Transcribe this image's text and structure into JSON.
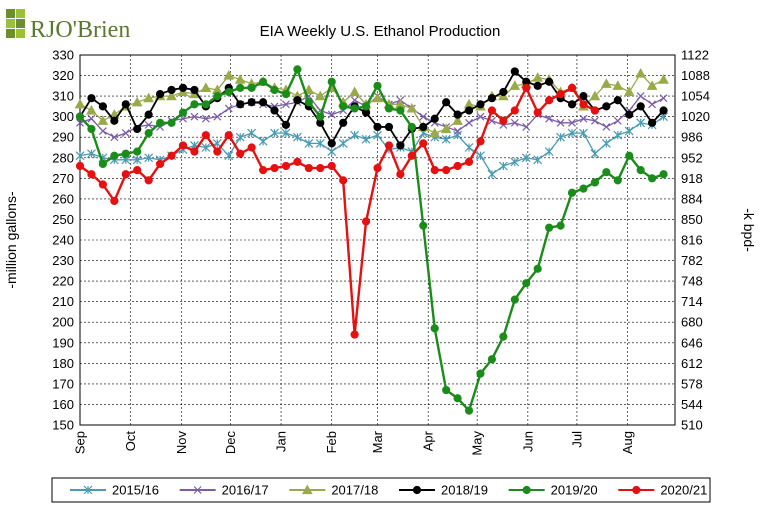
{
  "logo": {
    "brand": "RJO'Brien",
    "mark": "RJO",
    "suffix": "Brien"
  },
  "chart_data": {
    "type": "line",
    "title": "EIA Weekly U.S. Ethanol Production",
    "ylabel": "-million gallons-",
    "y2label": "-k bpd-",
    "ylim": [
      150,
      330
    ],
    "y2lim": [
      510,
      1122
    ],
    "yticks": [
      150,
      160,
      170,
      180,
      190,
      200,
      210,
      220,
      230,
      240,
      250,
      260,
      270,
      280,
      290,
      300,
      310,
      320,
      330
    ],
    "y2ticks": [
      510,
      544,
      578,
      612,
      646,
      680,
      714,
      748,
      782,
      816,
      850,
      884,
      918,
      952,
      986,
      1020,
      1054,
      1088,
      1122
    ],
    "xlim": [
      0,
      52
    ],
    "month_labels": [
      "Sep",
      "Oct",
      "Nov",
      "Dec",
      "Jan",
      "Feb",
      "Mar",
      "Apr",
      "May",
      "Jun",
      "Jul",
      "Aug"
    ],
    "month_positions": [
      0,
      4.43,
      8.86,
      13.14,
      17.57,
      22,
      26,
      30.43,
      34.71,
      39.14,
      43.43,
      47.86
    ],
    "grid": true,
    "legend_position": "bottom",
    "series": [
      {
        "name": "2015/16",
        "color": "#4a9bb3",
        "marker": "asterisk",
        "values": [
          281,
          282,
          280,
          279,
          279,
          279,
          280,
          279,
          281,
          284,
          286,
          285,
          287,
          281,
          290,
          292,
          288,
          292,
          292,
          290,
          287,
          287,
          283,
          287,
          291,
          289,
          291,
          284,
          285,
          283,
          292,
          290,
          289,
          291,
          285,
          281,
          272,
          276,
          278,
          280,
          279,
          283,
          290,
          292,
          292,
          282,
          287,
          291,
          293,
          297,
          296,
          300
        ]
      },
      {
        "name": "2016/17",
        "color": "#7a5ca8",
        "marker": "x",
        "values": [
          297,
          299,
          293,
          290,
          292,
          295,
          296,
          295,
          298,
          299,
          300,
          299,
          300,
          304,
          306,
          307,
          306,
          305,
          306,
          307,
          310,
          303,
          301,
          303,
          308,
          305,
          310,
          306,
          308,
          304,
          300,
          297,
          295,
          293,
          297,
          300,
          298,
          296,
          297,
          295,
          301,
          299,
          297,
          297,
          299,
          298,
          295,
          298,
          303,
          310,
          306,
          309
        ]
      },
      {
        "name": "2017/18",
        "color": "#9aaa4a",
        "marker": "triangle",
        "values": [
          306,
          303,
          298,
          301,
          305,
          307,
          309,
          310,
          310,
          312,
          311,
          314,
          313,
          320,
          318,
          316,
          317,
          314,
          313,
          310,
          313,
          310,
          314,
          307,
          312,
          306,
          309,
          306,
          306,
          304,
          295,
          292,
          294,
          298,
          306,
          305,
          310,
          310,
          315,
          316,
          319,
          318,
          312,
          314,
          305,
          310,
          316,
          315,
          312,
          321,
          315,
          318
        ]
      },
      {
        "name": "2018/19",
        "color": "#000000",
        "marker": "circle",
        "values": [
          300,
          309,
          305,
          298,
          306,
          294,
          301,
          311,
          313,
          314,
          313,
          305,
          309,
          314,
          306,
          307,
          307,
          303,
          296,
          308,
          305,
          297,
          287,
          297,
          305,
          302,
          295,
          295,
          286,
          294,
          295,
          299,
          307,
          301,
          303,
          306,
          309,
          312,
          322,
          317,
          315,
          317,
          309,
          306,
          310,
          303,
          305,
          308,
          301,
          305,
          297,
          303
        ]
      },
      {
        "name": "2019/20",
        "color": "#1a8c1a",
        "marker": "circle",
        "values": [
          300,
          294,
          277,
          281,
          282,
          283,
          292,
          297,
          297,
          302,
          306,
          306,
          310,
          312,
          314,
          314,
          317,
          313,
          311,
          323,
          307,
          300,
          317,
          305,
          304,
          305,
          315,
          304,
          303,
          295,
          247,
          197,
          167,
          163,
          157,
          175,
          182,
          193,
          211,
          219,
          226,
          246,
          247,
          263,
          265,
          268,
          273,
          269,
          281,
          274,
          270,
          272
        ]
      },
      {
        "name": "2020/21",
        "color": "#e61010",
        "marker": "circle",
        "values": [
          276,
          272,
          267,
          259,
          272,
          274,
          269,
          277,
          281,
          286,
          283,
          291,
          283,
          291,
          282,
          285,
          274,
          275,
          276,
          278,
          275,
          275,
          276,
          269,
          194,
          249,
          275,
          286,
          272,
          281,
          287,
          274,
          274,
          276,
          278,
          288,
          303,
          298,
          303,
          314,
          302,
          308,
          311,
          314,
          306,
          303
        ]
      }
    ]
  }
}
